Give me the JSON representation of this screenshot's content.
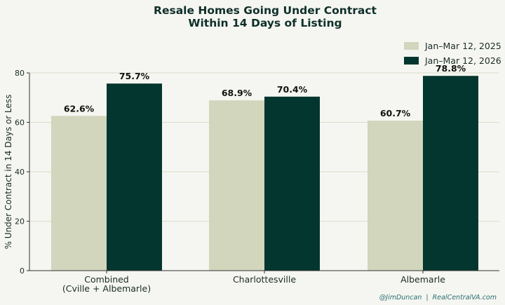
{
  "chart_data": {
    "type": "bar",
    "title": [
      "Resale Homes Going Under Contract",
      "Within 14 Days of Listing"
    ],
    "ylabel": "% Under Contract in 14 Days or Less",
    "xlabel": "",
    "categories": [
      [
        "Combined",
        "(Cville + Albemarle)"
      ],
      [
        "Charlottesville"
      ],
      [
        "Albemarle"
      ]
    ],
    "series": [
      {
        "name": "Jan–Mar 12, 2025",
        "values": [
          62.6,
          68.9,
          60.7
        ],
        "labels": [
          "62.6%",
          "68.9%",
          "60.7%"
        ],
        "color": "#d1d6bc"
      },
      {
        "name": "Jan–Mar 12, 2026",
        "values": [
          75.7,
          70.4,
          78.8
        ],
        "labels": [
          "75.7%",
          "70.4%",
          "78.8%"
        ],
        "color": "#02362e"
      }
    ],
    "ylim": [
      0,
      80
    ],
    "yticks": [
      "0",
      "20",
      "40",
      "60",
      "80"
    ],
    "grid": true,
    "legend": "top-right",
    "credit": "@JimDuncan  |  RealCentralVA.com"
  }
}
